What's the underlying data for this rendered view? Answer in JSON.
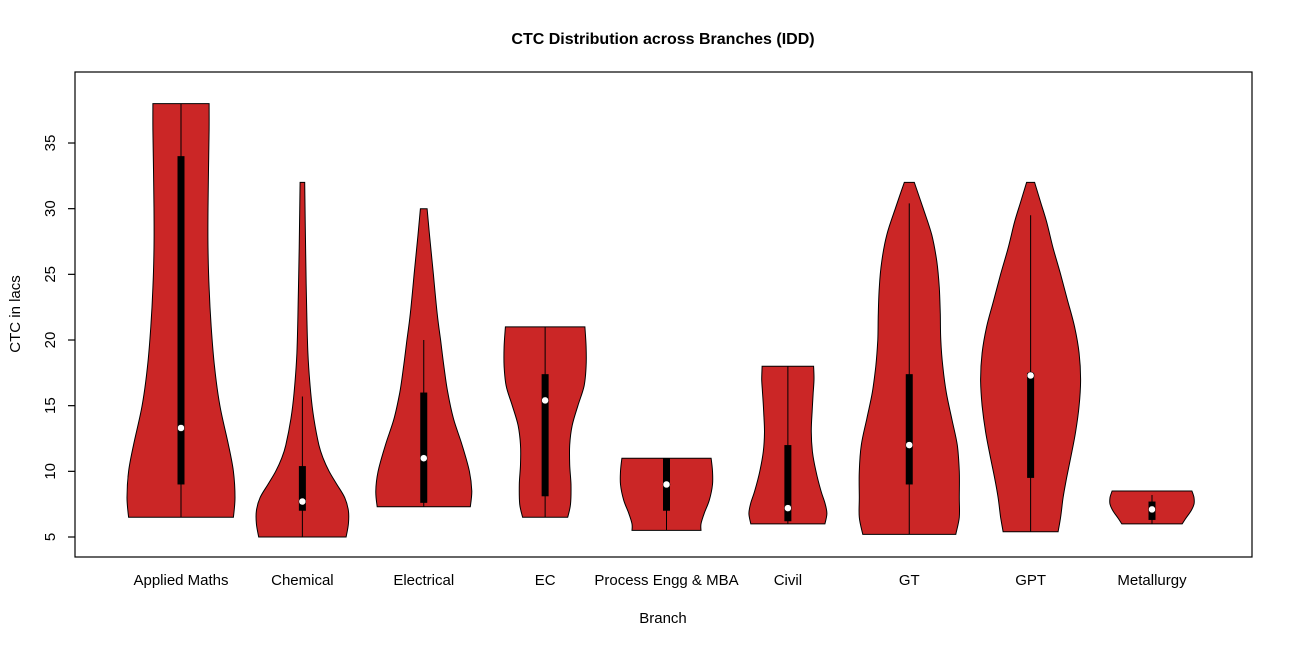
{
  "chart_data": {
    "type": "violin",
    "title": "CTC Distribution across Branches (IDD)",
    "xlabel": "Branch",
    "ylabel": "CTC in lacs",
    "y_ticks": [
      5,
      10,
      15,
      20,
      25,
      30,
      35
    ],
    "ylim": [
      3.5,
      40.4
    ],
    "grid": "off",
    "legend": "none",
    "fill_color": "#CB2626",
    "outline_color": "#000000",
    "violins": [
      {
        "name": "Applied Maths",
        "min": 6.5,
        "max": 38,
        "q1": 9,
        "q3": 34,
        "median": 13.3,
        "whisker_low": 6.5,
        "whisker_high": 38,
        "half_width": 54,
        "profile": [
          [
            6.5,
            0.97
          ],
          [
            8,
            1.0
          ],
          [
            10,
            0.97
          ],
          [
            12,
            0.88
          ],
          [
            15,
            0.72
          ],
          [
            18,
            0.62
          ],
          [
            21,
            0.56
          ],
          [
            24,
            0.52
          ],
          [
            27,
            0.5
          ],
          [
            30,
            0.5
          ],
          [
            33,
            0.51
          ],
          [
            36,
            0.52
          ],
          [
            38,
            0.52
          ]
        ]
      },
      {
        "name": "Chemical",
        "min": 5,
        "max": 32,
        "q1": 7,
        "q3": 10.4,
        "median": 7.7,
        "whisker_low": 5,
        "whisker_high": 15.7,
        "half_width": 46,
        "profile": [
          [
            5,
            0.95
          ],
          [
            6,
            1.0
          ],
          [
            7,
            1.0
          ],
          [
            8,
            0.92
          ],
          [
            9,
            0.75
          ],
          [
            10,
            0.58
          ],
          [
            11,
            0.45
          ],
          [
            12,
            0.36
          ],
          [
            14,
            0.25
          ],
          [
            16,
            0.18
          ],
          [
            19,
            0.12
          ],
          [
            23,
            0.09
          ],
          [
            27,
            0.07
          ],
          [
            32,
            0.05
          ]
        ]
      },
      {
        "name": "Electrical",
        "min": 7.3,
        "max": 30,
        "q1": 7.6,
        "q3": 16,
        "median": 11,
        "whisker_low": 7.3,
        "whisker_high": 20,
        "half_width": 48,
        "profile": [
          [
            7.3,
            0.97
          ],
          [
            8.5,
            1.0
          ],
          [
            10,
            0.95
          ],
          [
            12,
            0.8
          ],
          [
            14,
            0.62
          ],
          [
            16,
            0.5
          ],
          [
            18,
            0.42
          ],
          [
            20,
            0.35
          ],
          [
            22,
            0.28
          ],
          [
            25,
            0.2
          ],
          [
            28,
            0.12
          ],
          [
            30,
            0.07
          ]
        ]
      },
      {
        "name": "EC",
        "min": 6.5,
        "max": 21,
        "q1": 8.1,
        "q3": 17.4,
        "median": 15.4,
        "whisker_low": 6.5,
        "whisker_high": 21,
        "half_width": 41,
        "profile": [
          [
            6.5,
            0.55
          ],
          [
            7.5,
            0.62
          ],
          [
            9,
            0.63
          ],
          [
            10.5,
            0.6
          ],
          [
            12,
            0.6
          ],
          [
            13.5,
            0.66
          ],
          [
            15,
            0.8
          ],
          [
            16.5,
            0.95
          ],
          [
            18,
            1.0
          ],
          [
            19.5,
            1.0
          ],
          [
            21,
            0.97
          ]
        ]
      },
      {
        "name": "Process Engg & MBA",
        "min": 5.5,
        "max": 11,
        "q1": 7,
        "q3": 11,
        "median": 9,
        "whisker_low": 5.5,
        "whisker_high": 11,
        "half_width": 46,
        "profile": [
          [
            5.5,
            0.75
          ],
          [
            6,
            0.75
          ],
          [
            6.8,
            0.82
          ],
          [
            7.8,
            0.93
          ],
          [
            9,
            1.0
          ],
          [
            10,
            1.0
          ],
          [
            11,
            0.97
          ]
        ]
      },
      {
        "name": "Civil",
        "min": 6,
        "max": 18,
        "q1": 6.2,
        "q3": 12,
        "median": 7.2,
        "whisker_low": 6,
        "whisker_high": 18,
        "half_width": 39,
        "profile": [
          [
            6,
            0.95
          ],
          [
            6.8,
            1.0
          ],
          [
            7.6,
            0.95
          ],
          [
            8.5,
            0.85
          ],
          [
            10,
            0.72
          ],
          [
            11.5,
            0.63
          ],
          [
            13,
            0.6
          ],
          [
            14.5,
            0.62
          ],
          [
            16,
            0.65
          ],
          [
            17,
            0.67
          ],
          [
            18,
            0.66
          ]
        ]
      },
      {
        "name": "GT",
        "min": 5.2,
        "max": 32,
        "q1": 9,
        "q3": 17.4,
        "median": 12,
        "whisker_low": 5.2,
        "whisker_high": 30.4,
        "half_width": 50,
        "profile": [
          [
            5.2,
            0.93
          ],
          [
            6.5,
            1.0
          ],
          [
            8,
            1.0
          ],
          [
            10,
            1.0
          ],
          [
            12,
            0.96
          ],
          [
            14,
            0.85
          ],
          [
            16,
            0.74
          ],
          [
            18,
            0.67
          ],
          [
            20,
            0.63
          ],
          [
            22,
            0.62
          ],
          [
            24,
            0.6
          ],
          [
            26,
            0.55
          ],
          [
            28,
            0.45
          ],
          [
            30,
            0.28
          ],
          [
            32,
            0.1
          ]
        ]
      },
      {
        "name": "GPT",
        "min": 5.4,
        "max": 32,
        "q1": 9.5,
        "q3": 17.5,
        "median": 17.3,
        "whisker_low": 5.4,
        "whisker_high": 29.5,
        "half_width": 50,
        "profile": [
          [
            5.4,
            0.55
          ],
          [
            6.5,
            0.6
          ],
          [
            8,
            0.65
          ],
          [
            9.5,
            0.72
          ],
          [
            11,
            0.8
          ],
          [
            13,
            0.9
          ],
          [
            15,
            0.97
          ],
          [
            17,
            1.0
          ],
          [
            19,
            0.97
          ],
          [
            21,
            0.88
          ],
          [
            23,
            0.74
          ],
          [
            25,
            0.6
          ],
          [
            27,
            0.45
          ],
          [
            29,
            0.32
          ],
          [
            30.5,
            0.2
          ],
          [
            32,
            0.08
          ]
        ]
      },
      {
        "name": "Metallurgy",
        "min": 6,
        "max": 8.5,
        "q1": 6.3,
        "q3": 7.7,
        "median": 7.1,
        "whisker_low": 6,
        "whisker_high": 8.2,
        "half_width": 42,
        "profile": [
          [
            6,
            0.72
          ],
          [
            6.4,
            0.8
          ],
          [
            7,
            0.93
          ],
          [
            7.5,
            1.0
          ],
          [
            8,
            1.0
          ],
          [
            8.5,
            0.95
          ]
        ]
      }
    ]
  }
}
